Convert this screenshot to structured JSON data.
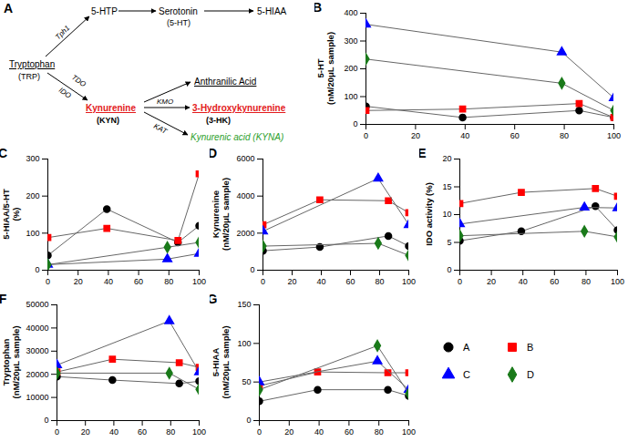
{
  "diagram": {
    "title": "A",
    "nodes": [
      {
        "label": "Tryptophan"
      },
      {
        "label": "(TRP)"
      },
      {
        "label": "5-HTP"
      },
      {
        "label": "Serotonin"
      },
      {
        "label": "(5-HT)"
      },
      {
        "label": "5-HIAA"
      },
      {
        "label": "Kynurenine",
        "color": "#e31a1c"
      },
      {
        "label": "(KYN)"
      },
      {
        "label": "Anthranilic Acid"
      },
      {
        "label": "3-Hydroxykynurenine",
        "color": "#e31a1c"
      },
      {
        "label": "(3-HK)"
      },
      {
        "label": "Kynurenic acid (KYNA)",
        "color": "#2ca02c"
      }
    ],
    "enzymes": [
      "Tph1",
      "TDO",
      "IDO",
      "KMO",
      "KAT"
    ]
  },
  "chart_data": [
    {
      "type": "line",
      "title": "B",
      "ylabel": "5-HT\n(nM/20μL sample)",
      "xlim": [
        0,
        100
      ],
      "xticks": [
        0,
        20,
        40,
        60,
        80,
        100
      ],
      "ylim": [
        0,
        400
      ],
      "yticks": [
        0,
        100,
        200,
        300,
        400
      ],
      "series": [
        {
          "name": "A",
          "color": "#000000",
          "marker": "circle",
          "x": [
            0,
            39,
            86,
            100
          ],
          "values": [
            65,
            25,
            50,
            25
          ]
        },
        {
          "name": "B",
          "color": "#ff0000",
          "marker": "square",
          "x": [
            0,
            39,
            86,
            100
          ],
          "values": [
            50,
            55,
            75,
            25
          ]
        },
        {
          "name": "C",
          "color": "#0000ff",
          "marker": "triangle",
          "x": [
            0,
            79,
            100
          ],
          "values": [
            360,
            260,
            95
          ]
        },
        {
          "name": "D",
          "color": "#1a7a1a",
          "marker": "diamond",
          "x": [
            0,
            79,
            100
          ],
          "values": [
            235,
            148,
            50
          ]
        }
      ]
    },
    {
      "type": "line",
      "title": "C",
      "ylabel": "5-HIAA/5-HT\n(%)",
      "xlim": [
        0,
        100
      ],
      "xticks": [
        0,
        20,
        40,
        60,
        80,
        100
      ],
      "ylim": [
        0,
        300
      ],
      "yticks": [
        0,
        100,
        200,
        300
      ],
      "series": [
        {
          "name": "A",
          "color": "#000000",
          "marker": "circle",
          "x": [
            0,
            39,
            86,
            100
          ],
          "values": [
            40,
            165,
            75,
            120
          ]
        },
        {
          "name": "B",
          "color": "#ff0000",
          "marker": "square",
          "x": [
            0,
            39,
            86,
            100
          ],
          "values": [
            88,
            113,
            80,
            260
          ]
        },
        {
          "name": "C",
          "color": "#0000ff",
          "marker": "triangle",
          "x": [
            0,
            79,
            100
          ],
          "values": [
            15,
            30,
            45
          ]
        },
        {
          "name": "D",
          "color": "#1a7a1a",
          "marker": "diamond",
          "x": [
            0,
            79,
            100
          ],
          "values": [
            15,
            62,
            75
          ]
        }
      ]
    },
    {
      "type": "line",
      "title": "D",
      "ylabel": "Kynurenine\n(nM/20μL sample)",
      "xlim": [
        0,
        100
      ],
      "xticks": [
        0,
        20,
        40,
        60,
        80,
        100
      ],
      "ylim": [
        0,
        6000
      ],
      "yticks": [
        0,
        2000,
        4000,
        6000
      ],
      "series": [
        {
          "name": "A",
          "color": "#000000",
          "marker": "circle",
          "x": [
            0,
            39,
            86,
            100
          ],
          "values": [
            1050,
            1250,
            1850,
            1300
          ]
        },
        {
          "name": "B",
          "color": "#ff0000",
          "marker": "square",
          "x": [
            0,
            39,
            86,
            100
          ],
          "values": [
            2450,
            3800,
            3750,
            3100
          ]
        },
        {
          "name": "C",
          "color": "#0000ff",
          "marker": "triangle",
          "x": [
            0,
            79,
            100
          ],
          "values": [
            2100,
            4950,
            2450
          ]
        },
        {
          "name": "D",
          "color": "#1a7a1a",
          "marker": "diamond",
          "x": [
            0,
            79,
            100
          ],
          "values": [
            1300,
            1450,
            800
          ]
        }
      ]
    },
    {
      "type": "line",
      "title": "E",
      "ylabel": "IDO activity (%)",
      "xlim": [
        0,
        100
      ],
      "xticks": [
        0,
        20,
        40,
        60,
        80,
        100
      ],
      "ylim": [
        0,
        20
      ],
      "yticks": [
        0,
        5,
        10,
        15,
        20
      ],
      "series": [
        {
          "name": "A",
          "color": "#000000",
          "marker": "circle",
          "x": [
            0,
            39,
            86,
            100
          ],
          "values": [
            5.3,
            7,
            11.5,
            7.2
          ]
        },
        {
          "name": "B",
          "color": "#ff0000",
          "marker": "square",
          "x": [
            0,
            39,
            86,
            100
          ],
          "values": [
            12,
            14,
            14.7,
            13.3
          ]
        },
        {
          "name": "C",
          "color": "#0000ff",
          "marker": "triangle",
          "x": [
            0,
            79,
            100
          ],
          "values": [
            8.3,
            11.3,
            11.2
          ]
        },
        {
          "name": "D",
          "color": "#1a7a1a",
          "marker": "diamond",
          "x": [
            0,
            79,
            100
          ],
          "values": [
            6.2,
            7,
            6
          ]
        }
      ]
    },
    {
      "type": "line",
      "title": "F",
      "ylabel": "Tryptophan\n(nM/20μL sample)",
      "xlim": [
        0,
        100
      ],
      "xticks": [
        0,
        20,
        40,
        60,
        80,
        100
      ],
      "ylim": [
        0,
        50000
      ],
      "yticks": [
        0,
        10000,
        20000,
        30000,
        40000,
        50000
      ],
      "series": [
        {
          "name": "A",
          "color": "#000000",
          "marker": "circle",
          "x": [
            0,
            39,
            86,
            100
          ],
          "values": [
            19000,
            17500,
            16000,
            17000
          ]
        },
        {
          "name": "B",
          "color": "#ff0000",
          "marker": "square",
          "x": [
            0,
            39,
            86,
            100
          ],
          "values": [
            21000,
            26500,
            25000,
            23000
          ]
        },
        {
          "name": "C",
          "color": "#0000ff",
          "marker": "triangle",
          "x": [
            0,
            79,
            100
          ],
          "values": [
            24000,
            43000,
            21000
          ]
        },
        {
          "name": "D",
          "color": "#1a7a1a",
          "marker": "diamond",
          "x": [
            0,
            79,
            100
          ],
          "values": [
            20500,
            20500,
            13500
          ]
        }
      ]
    },
    {
      "type": "line",
      "title": "G",
      "ylabel": "5-HIAA\n(nM/20μL sample)",
      "legend": "right",
      "xlim": [
        0,
        100
      ],
      "xticks": [
        0,
        20,
        40,
        60,
        80,
        100
      ],
      "ylim": [
        0,
        150
      ],
      "yticks": [
        0,
        50,
        100,
        150
      ],
      "series": [
        {
          "name": "A",
          "color": "#000000",
          "marker": "circle",
          "x": [
            0,
            39,
            86,
            100
          ],
          "values": [
            25,
            40,
            40,
            32
          ]
        },
        {
          "name": "B",
          "color": "#ff0000",
          "marker": "square",
          "x": [
            0,
            39,
            86,
            100
          ],
          "values": [
            45,
            63,
            62,
            62
          ]
        },
        {
          "name": "C",
          "color": "#0000ff",
          "marker": "triangle",
          "x": [
            0,
            79,
            100
          ],
          "values": [
            50,
            77,
            40
          ]
        },
        {
          "name": "D",
          "color": "#1a7a1a",
          "marker": "diamond",
          "x": [
            0,
            79,
            100
          ],
          "values": [
            40,
            97,
            35
          ]
        }
      ]
    }
  ]
}
